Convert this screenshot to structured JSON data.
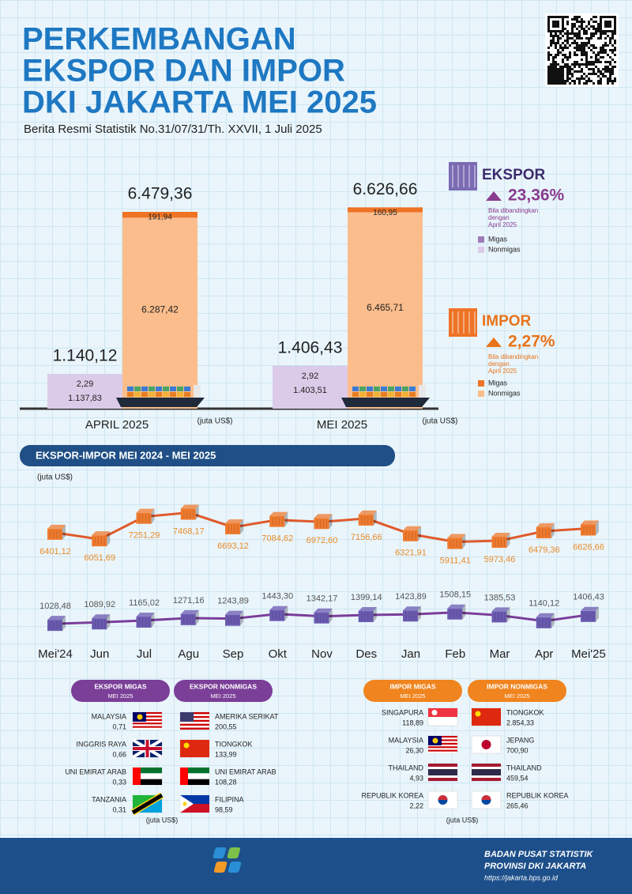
{
  "header": {
    "title_lines": [
      "PERKEMBANGAN",
      "EKSPOR DAN IMPOR",
      "DKI JAKARTA MEI 2025"
    ],
    "subtitle": "Berita Resmi Statistik No.31/07/31/Th. XXVII, 1 Juli 2025"
  },
  "chart_data": [
    {
      "type": "bar",
      "stacked": true,
      "unit": "(juta US$)",
      "categories": [
        "APRIL 2025",
        "MEI 2025"
      ],
      "ylim": [
        0,
        7000
      ],
      "groups": [
        {
          "name": "EKSPOR",
          "change": "23,36%",
          "note": [
            "Bila dibandingkan",
            "dengan",
            "April 2025"
          ],
          "totals": [
            1140.12,
            1406.43
          ],
          "total_labels": [
            "1.140,12",
            "1.406,43"
          ],
          "series": [
            {
              "name": "Migas",
              "color": "#9e7cb8",
              "values": [
                2.29,
                2.92
              ],
              "value_labels": [
                "2,29",
                "2,92"
              ]
            },
            {
              "name": "Nonmigas",
              "color": "#dccbe8",
              "values": [
                1137.83,
                1403.51
              ],
              "value_labels": [
                "1.137,83",
                "1.403,51"
              ]
            }
          ]
        },
        {
          "name": "IMPOR",
          "change": "2,27%",
          "note": [
            "Bila dibandingkan",
            "dengan",
            "April 2025"
          ],
          "totals": [
            6479.36,
            6626.66
          ],
          "total_labels": [
            "6.479,36",
            "6.626,66"
          ],
          "series": [
            {
              "name": "Migas",
              "color": "#ee7325",
              "values": [
                191.94,
                160.95
              ],
              "value_labels": [
                "191,94",
                "160,95"
              ]
            },
            {
              "name": "Nonmigas",
              "color": "#fbbd8c",
              "values": [
                6287.42,
                6465.71
              ],
              "value_labels": [
                "6.287,42",
                "6.465,71"
              ]
            }
          ]
        }
      ]
    },
    {
      "type": "line",
      "title": "EKSPOR-IMPOR MEI 2024 - MEI 2025",
      "unit": "(juta US$)",
      "categories": [
        "Mei'24",
        "Jun",
        "Jul",
        "Agu",
        "Sep",
        "Okt",
        "Nov",
        "Des",
        "Jan",
        "Feb",
        "Mar",
        "Apr",
        "Mei'25"
      ],
      "ylim": [
        0,
        8500
      ],
      "y2lim": [
        0,
        4000
      ],
      "series": [
        {
          "color": "#e05a2b",
          "values": [
            6401.12,
            6051.69,
            7251.29,
            7468.17,
            6693.12,
            7084.62,
            6972.6,
            7156.66,
            6321.91,
            5911.41,
            5973.46,
            6479.36,
            6626.66
          ],
          "value_labels": [
            "6401,12",
            "6051,69",
            "7251,29",
            "7468,17",
            "6693,12",
            "7084,62",
            "6972,60",
            "7156,66",
            "6321,91",
            "5911,41",
            "5973,46",
            "6479,36",
            "6626,66"
          ]
        },
        {
          "color": "#7a3e9a",
          "axis": "y2",
          "values": [
            1028.48,
            1089.92,
            1165.02,
            1271.16,
            1243.89,
            1443.3,
            1342.17,
            1399.14,
            1423.89,
            1508.15,
            1385.53,
            1140.12,
            1406.43
          ],
          "value_labels": [
            "1028,48",
            "1089,92",
            "1165,02",
            "1271,16",
            "1243,89",
            "1443,30",
            "1342,17",
            "1399,14",
            "1423,89",
            "1508,15",
            "1385,53",
            "1140,12",
            "1406,43"
          ]
        }
      ]
    }
  ],
  "tables": {
    "unit": "(juta US$)",
    "items": [
      {
        "title": "EKSPOR MIGAS",
        "period": "MEI 2025",
        "rows": [
          {
            "country": "MALAYSIA",
            "value": "0,71"
          },
          {
            "country": "INGGRIS RAYA",
            "value": "0,66"
          },
          {
            "country": "UNI EMIRAT ARAB",
            "value": "0,33"
          },
          {
            "country": "TANZANIA",
            "value": "0,31"
          }
        ]
      },
      {
        "title": "EKSPOR NONMIGAS",
        "period": "MEI 2025",
        "rows": [
          {
            "country": "AMERIKA SERIKAT",
            "value": "200,55"
          },
          {
            "country": "TIONGKOK",
            "value": "133,99"
          },
          {
            "country": "UNI EMIRAT ARAB",
            "value": "108,28"
          },
          {
            "country": "FILIPINA",
            "value": "98,59"
          }
        ]
      },
      {
        "title": "IMPOR MIGAS",
        "period": "MEI 2025",
        "rows": [
          {
            "country": "SINGAPURA",
            "value": "118,89"
          },
          {
            "country": "MALAYSIA",
            "value": "26,30"
          },
          {
            "country": "THAILAND",
            "value": "4,93"
          },
          {
            "country": "REPUBLIK KOREA",
            "value": "2,22"
          }
        ]
      },
      {
        "title": "IMPOR NONMIGAS",
        "period": "MEI 2025",
        "rows": [
          {
            "country": "TIONGKOK",
            "value": "2.854,33"
          },
          {
            "country": "JEPANG",
            "value": "700,90"
          },
          {
            "country": "THAILAND",
            "value": "459,54"
          },
          {
            "country": "REPUBLIK KOREA",
            "value": "265,46"
          }
        ]
      }
    ]
  },
  "footer": {
    "org": "BADAN PUSAT STATISTIK",
    "region": "PROVINSI DKI JAKARTA",
    "url": "https://jakarta.bps.go.id"
  }
}
